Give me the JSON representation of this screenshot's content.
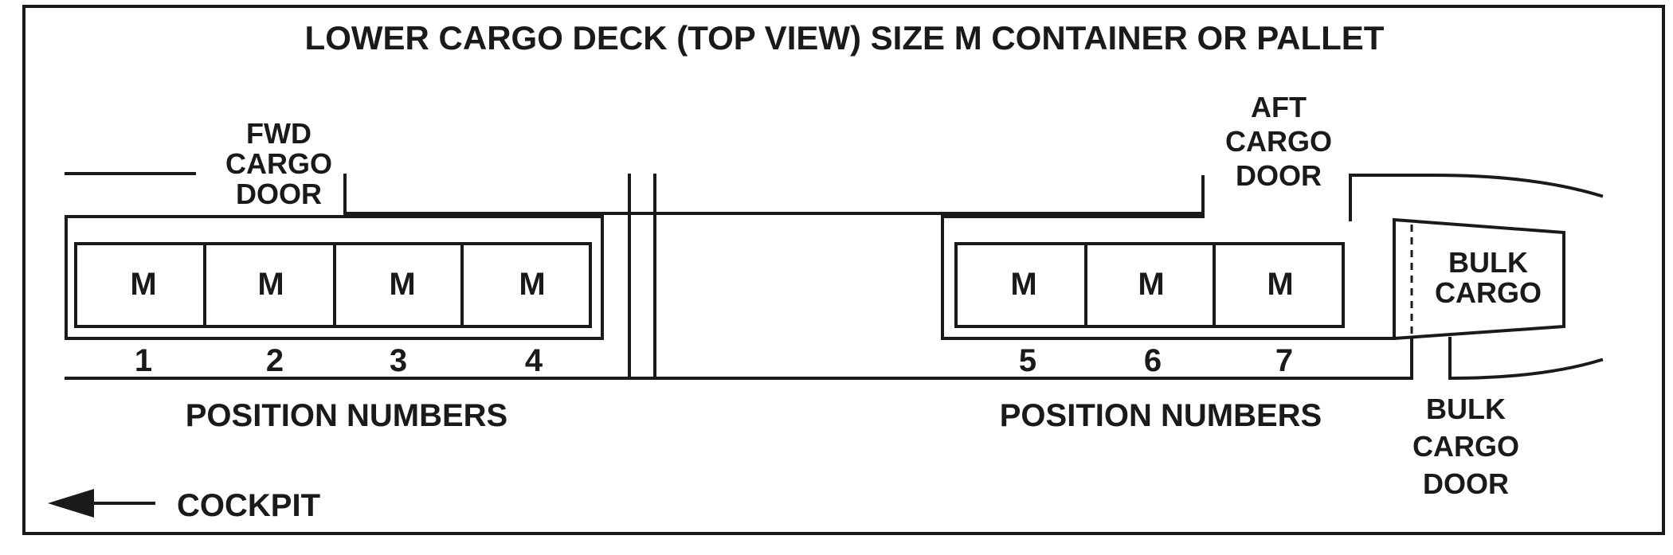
{
  "title": "LOWER CARGO DECK (TOP VIEW) SIZE M CONTAINER OR PALLET",
  "fwd_door": {
    "lines": [
      "FWD",
      "CARGO",
      "DOOR"
    ]
  },
  "aft_door": {
    "lines": [
      "AFT",
      "CARGO",
      "DOOR"
    ]
  },
  "bulk_cargo": {
    "lines": [
      "BULK",
      "CARGO"
    ]
  },
  "bulk_door": {
    "lines": [
      "BULK",
      "CARGO",
      "DOOR"
    ]
  },
  "fwd_positions": [
    {
      "container": "M",
      "number": "1"
    },
    {
      "container": "M",
      "number": "2"
    },
    {
      "container": "M",
      "number": "3"
    },
    {
      "container": "M",
      "number": "4"
    }
  ],
  "aft_positions": [
    {
      "container": "M",
      "number": "5"
    },
    {
      "container": "M",
      "number": "6"
    },
    {
      "container": "M",
      "number": "7"
    }
  ],
  "position_label": "POSITION NUMBERS",
  "direction": {
    "label": "COCKPIT",
    "icon": "arrow-left-icon"
  },
  "colors": {
    "line": "#1a1a1a",
    "background": "#ffffff"
  }
}
